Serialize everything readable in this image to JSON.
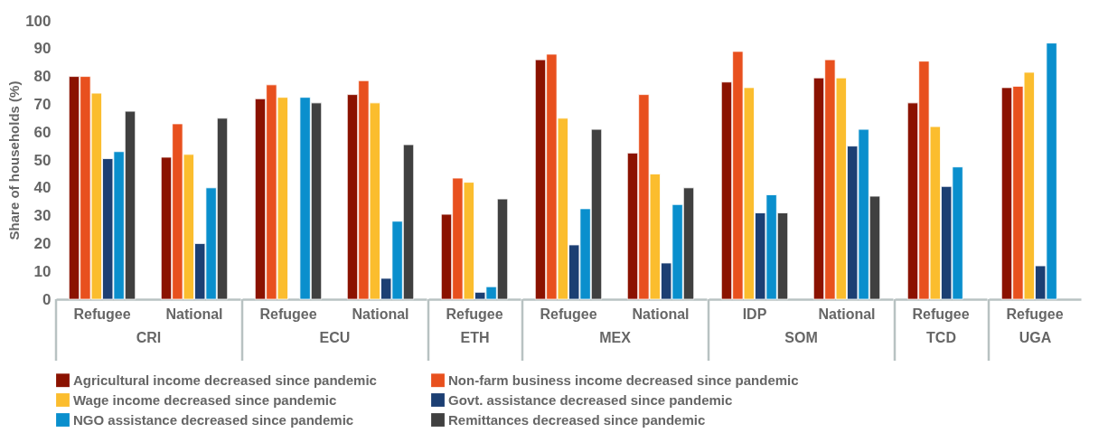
{
  "chart_data": [
    {
      "type": "bar",
      "xlabel": "CRI",
      "ylabel": "Share of households (%)",
      "categories": [
        "Refugee",
        "National"
      ],
      "ylim": [
        0,
        100
      ],
      "yticks": [
        0,
        10,
        20,
        30,
        40,
        50,
        60,
        70,
        80,
        90,
        100
      ],
      "grid": false,
      "legend": "bottom",
      "series": [
        {
          "name": "Agricultural income decreased since pandemic",
          "color": "#8b1200",
          "values": [
            80,
            51
          ]
        },
        {
          "name": "Non-farm business income decreased since pandemic",
          "color": "#e8501e",
          "values": [
            80,
            63
          ]
        },
        {
          "name": "Wage income decreased since pandemic",
          "color": "#fbbd2e",
          "values": [
            74,
            52
          ]
        },
        {
          "name": "Govt. assistance decreased since pandemic",
          "color": "#1c3f73",
          "values": [
            50.5,
            20
          ]
        },
        {
          "name": "NGO assistance decreased since pandemic",
          "color": "#0a8fcd",
          "values": [
            53,
            40
          ]
        },
        {
          "name": "Remittances decreased since pandemic",
          "color": "#404040",
          "values": [
            67.5,
            65
          ]
        }
      ]
    },
    {
      "type": "bar",
      "xlabel": "ECU",
      "categories": [
        "Refugee",
        "National"
      ],
      "ylim": [
        0,
        100
      ],
      "tick_labels": "x",
      "series": [
        {
          "name": "Agricultural income decreased since pandemic",
          "color": "#8b1200",
          "values": [
            72,
            73.5
          ]
        },
        {
          "name": "Non-farm business income decreased since pandemic",
          "color": "#e8501e",
          "values": [
            77,
            78.5
          ]
        },
        {
          "name": "Wage income decreased since pandemic",
          "color": "#fbbd2e",
          "values": [
            72.5,
            70.5
          ]
        },
        {
          "name": "Govt. assistance decreased since pandemic",
          "color": "#1c3f73",
          "values": [
            null,
            7.5
          ]
        },
        {
          "name": "NGO assistance decreased since pandemic",
          "color": "#0a8fcd",
          "values": [
            72.5,
            28
          ]
        },
        {
          "name": "Remittances decreased since pandemic",
          "color": "#404040",
          "values": [
            70.5,
            55.5
          ]
        }
      ]
    },
    {
      "type": "bar",
      "xlabel": "ETH",
      "categories": [
        "Refugee"
      ],
      "ylim": [
        0,
        100
      ],
      "tick_labels": "x",
      "series": [
        {
          "name": "Agricultural income decreased since pandemic",
          "color": "#8b1200",
          "values": [
            30.5
          ]
        },
        {
          "name": "Non-farm business income decreased since pandemic",
          "color": "#e8501e",
          "values": [
            43.5
          ]
        },
        {
          "name": "Wage income decreased since pandemic",
          "color": "#fbbd2e",
          "values": [
            42
          ]
        },
        {
          "name": "Govt. assistance decreased since pandemic",
          "color": "#1c3f73",
          "values": [
            2.5
          ]
        },
        {
          "name": "NGO assistance decreased since pandemic",
          "color": "#0a8fcd",
          "values": [
            4.5
          ]
        },
        {
          "name": "Remittances decreased since pandemic",
          "color": "#404040",
          "values": [
            36
          ]
        }
      ]
    },
    {
      "type": "bar",
      "xlabel": "MEX",
      "categories": [
        "Refugee",
        "National"
      ],
      "ylim": [
        0,
        100
      ],
      "tick_labels": "x",
      "series": [
        {
          "name": "Agricultural income decreased since pandemic",
          "color": "#8b1200",
          "values": [
            86,
            52.5
          ]
        },
        {
          "name": "Non-farm business income decreased since pandemic",
          "color": "#e8501e",
          "values": [
            88,
            73.5
          ]
        },
        {
          "name": "Wage income decreased since pandemic",
          "color": "#fbbd2e",
          "values": [
            65,
            45
          ]
        },
        {
          "name": "Govt. assistance decreased since pandemic",
          "color": "#1c3f73",
          "values": [
            19.5,
            13
          ]
        },
        {
          "name": "NGO assistance decreased since pandemic",
          "color": "#0a8fcd",
          "values": [
            32.5,
            34
          ]
        },
        {
          "name": "Remittances decreased since pandemic",
          "color": "#404040",
          "values": [
            61,
            40
          ]
        }
      ]
    },
    {
      "type": "bar",
      "xlabel": "SOM",
      "categories": [
        "IDP",
        "National"
      ],
      "ylim": [
        0,
        100
      ],
      "tick_labels": "x",
      "series": [
        {
          "name": "Agricultural income decreased since pandemic",
          "color": "#8b1200",
          "values": [
            78,
            79.5
          ]
        },
        {
          "name": "Non-farm business income decreased since pandemic",
          "color": "#e8501e",
          "values": [
            89,
            86
          ]
        },
        {
          "name": "Wage income decreased since pandemic",
          "color": "#fbbd2e",
          "values": [
            76,
            79.5
          ]
        },
        {
          "name": "Govt. assistance decreased since pandemic",
          "color": "#1c3f73",
          "values": [
            31,
            55
          ]
        },
        {
          "name": "NGO assistance decreased since pandemic",
          "color": "#0a8fcd",
          "values": [
            37.5,
            61
          ]
        },
        {
          "name": "Remittances decreased since pandemic",
          "color": "#404040",
          "values": [
            31,
            37
          ]
        }
      ]
    },
    {
      "type": "bar",
      "xlabel": "TCD",
      "categories": [
        "Refugee"
      ],
      "ylim": [
        0,
        100
      ],
      "tick_labels": "x",
      "series": [
        {
          "name": "Agricultural income decreased since pandemic",
          "color": "#8b1200",
          "values": [
            70.5
          ]
        },
        {
          "name": "Non-farm business income decreased since pandemic",
          "color": "#e8501e",
          "values": [
            85.5
          ]
        },
        {
          "name": "Wage income decreased since pandemic",
          "color": "#fbbd2e",
          "values": [
            62
          ]
        },
        {
          "name": "Govt. assistance decreased since pandemic",
          "color": "#1c3f73",
          "values": [
            40.5
          ]
        },
        {
          "name": "NGO assistance decreased since pandemic",
          "color": "#0a8fcd",
          "values": [
            47.5
          ]
        },
        {
          "name": "Remittances decreased since pandemic",
          "color": "#404040",
          "values": [
            null
          ]
        }
      ]
    },
    {
      "type": "bar",
      "xlabel": "UGA",
      "categories": [
        "Refugee"
      ],
      "ylim": [
        0,
        100
      ],
      "tick_labels": "x",
      "series": [
        {
          "name": "Agricultural income decreased since pandemic",
          "color": "#8b1200",
          "values": [
            76
          ]
        },
        {
          "name": "Non-farm business income decreased since pandemic",
          "color": "#e8501e",
          "values": [
            76.5
          ]
        },
        {
          "name": "Wage income decreased since pandemic",
          "color": "#fbbd2e",
          "values": [
            81.5
          ]
        },
        {
          "name": "Govt. assistance decreased since pandemic",
          "color": "#1c3f73",
          "values": [
            12
          ]
        },
        {
          "name": "NGO assistance decreased since pandemic",
          "color": "#0a8fcd",
          "values": [
            92
          ]
        },
        {
          "name": "Remittances decreased since pandemic",
          "color": "#404040",
          "values": [
            null
          ]
        }
      ]
    }
  ]
}
